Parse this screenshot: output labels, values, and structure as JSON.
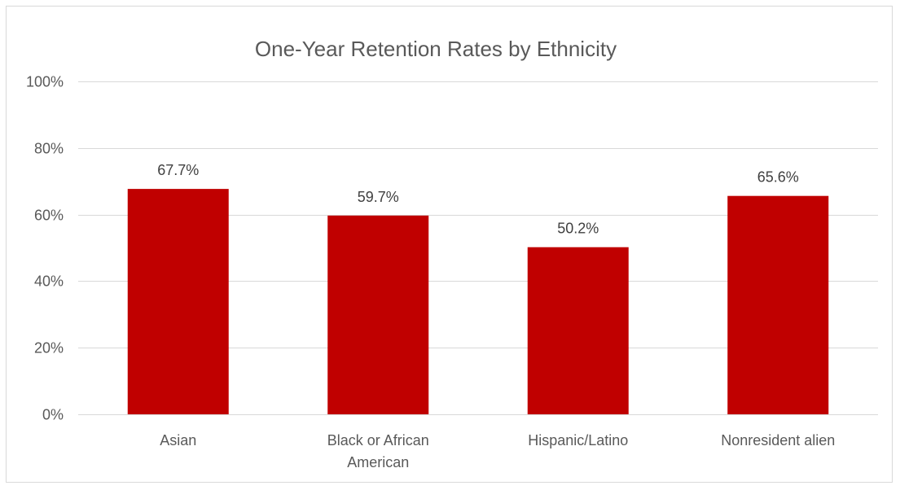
{
  "chart_data": {
    "type": "bar",
    "title": "One-Year Retention Rates by Ethnicity",
    "categories": [
      [
        "Asian"
      ],
      [
        "Black or African",
        "American"
      ],
      [
        "Hispanic/Latino"
      ],
      [
        "Nonresident alien"
      ]
    ],
    "values": [
      67.7,
      59.7,
      50.2,
      65.6
    ],
    "data_labels": [
      "67.7%",
      "59.7%",
      "50.2%",
      "65.6%"
    ],
    "ylim": [
      0,
      100
    ],
    "yticks": [
      0,
      20,
      40,
      60,
      80,
      100
    ],
    "ytick_labels": [
      "0%",
      "20%",
      "40%",
      "60%",
      "80%",
      "100%"
    ],
    "grid": true,
    "legend": "none",
    "bar_color": "#C00000",
    "xlabel": "",
    "ylabel": ""
  }
}
